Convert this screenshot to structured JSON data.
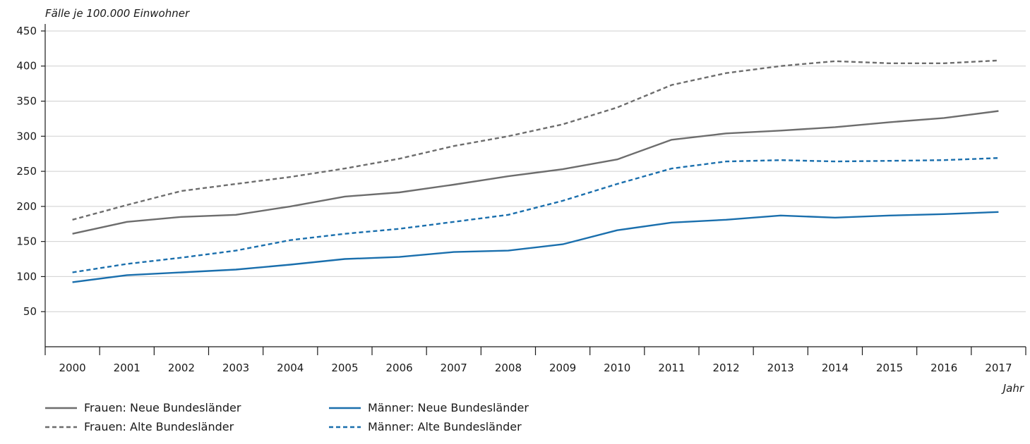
{
  "chart_data": {
    "type": "line",
    "ylabel": "Fälle je 100.000 Einwohner",
    "xlabel": "Jahr",
    "x": [
      "2000",
      "2001",
      "2002",
      "2003",
      "2004",
      "2005",
      "2006",
      "2007",
      "2008",
      "2009",
      "2010",
      "2011",
      "2012",
      "2013",
      "2014",
      "2015",
      "2016",
      "2017"
    ],
    "yticks": [
      50,
      100,
      150,
      200,
      250,
      300,
      350,
      400,
      450
    ],
    "ylim": [
      0,
      460
    ],
    "grid": true,
    "legend_position": "bottom-left",
    "series": [
      {
        "name": "Frauen: Neue Bundesländer",
        "style": "solid",
        "color": "#6d6d6d",
        "values": [
          161,
          178,
          185,
          188,
          200,
          214,
          220,
          231,
          243,
          253,
          267,
          295,
          304,
          308,
          313,
          320,
          326,
          336
        ]
      },
      {
        "name": "Frauen: Alte Bundesländer",
        "style": "dashed",
        "color": "#6d6d6d",
        "values": [
          181,
          202,
          222,
          232,
          242,
          254,
          268,
          286,
          300,
          317,
          341,
          373,
          390,
          400,
          407,
          404,
          404,
          408
        ]
      },
      {
        "name": "Männer: Neue Bundesländer",
        "style": "solid",
        "color": "#1a6fad",
        "values": [
          92,
          102,
          106,
          110,
          117,
          125,
          128,
          135,
          137,
          146,
          166,
          177,
          181,
          187,
          184,
          187,
          189,
          192
        ]
      },
      {
        "name": "Männer: Alte Bundesländer",
        "style": "dashed",
        "color": "#1a6fad",
        "values": [
          106,
          118,
          127,
          137,
          152,
          161,
          168,
          178,
          188,
          208,
          232,
          254,
          264,
          266,
          264,
          265,
          266,
          269
        ]
      }
    ]
  }
}
